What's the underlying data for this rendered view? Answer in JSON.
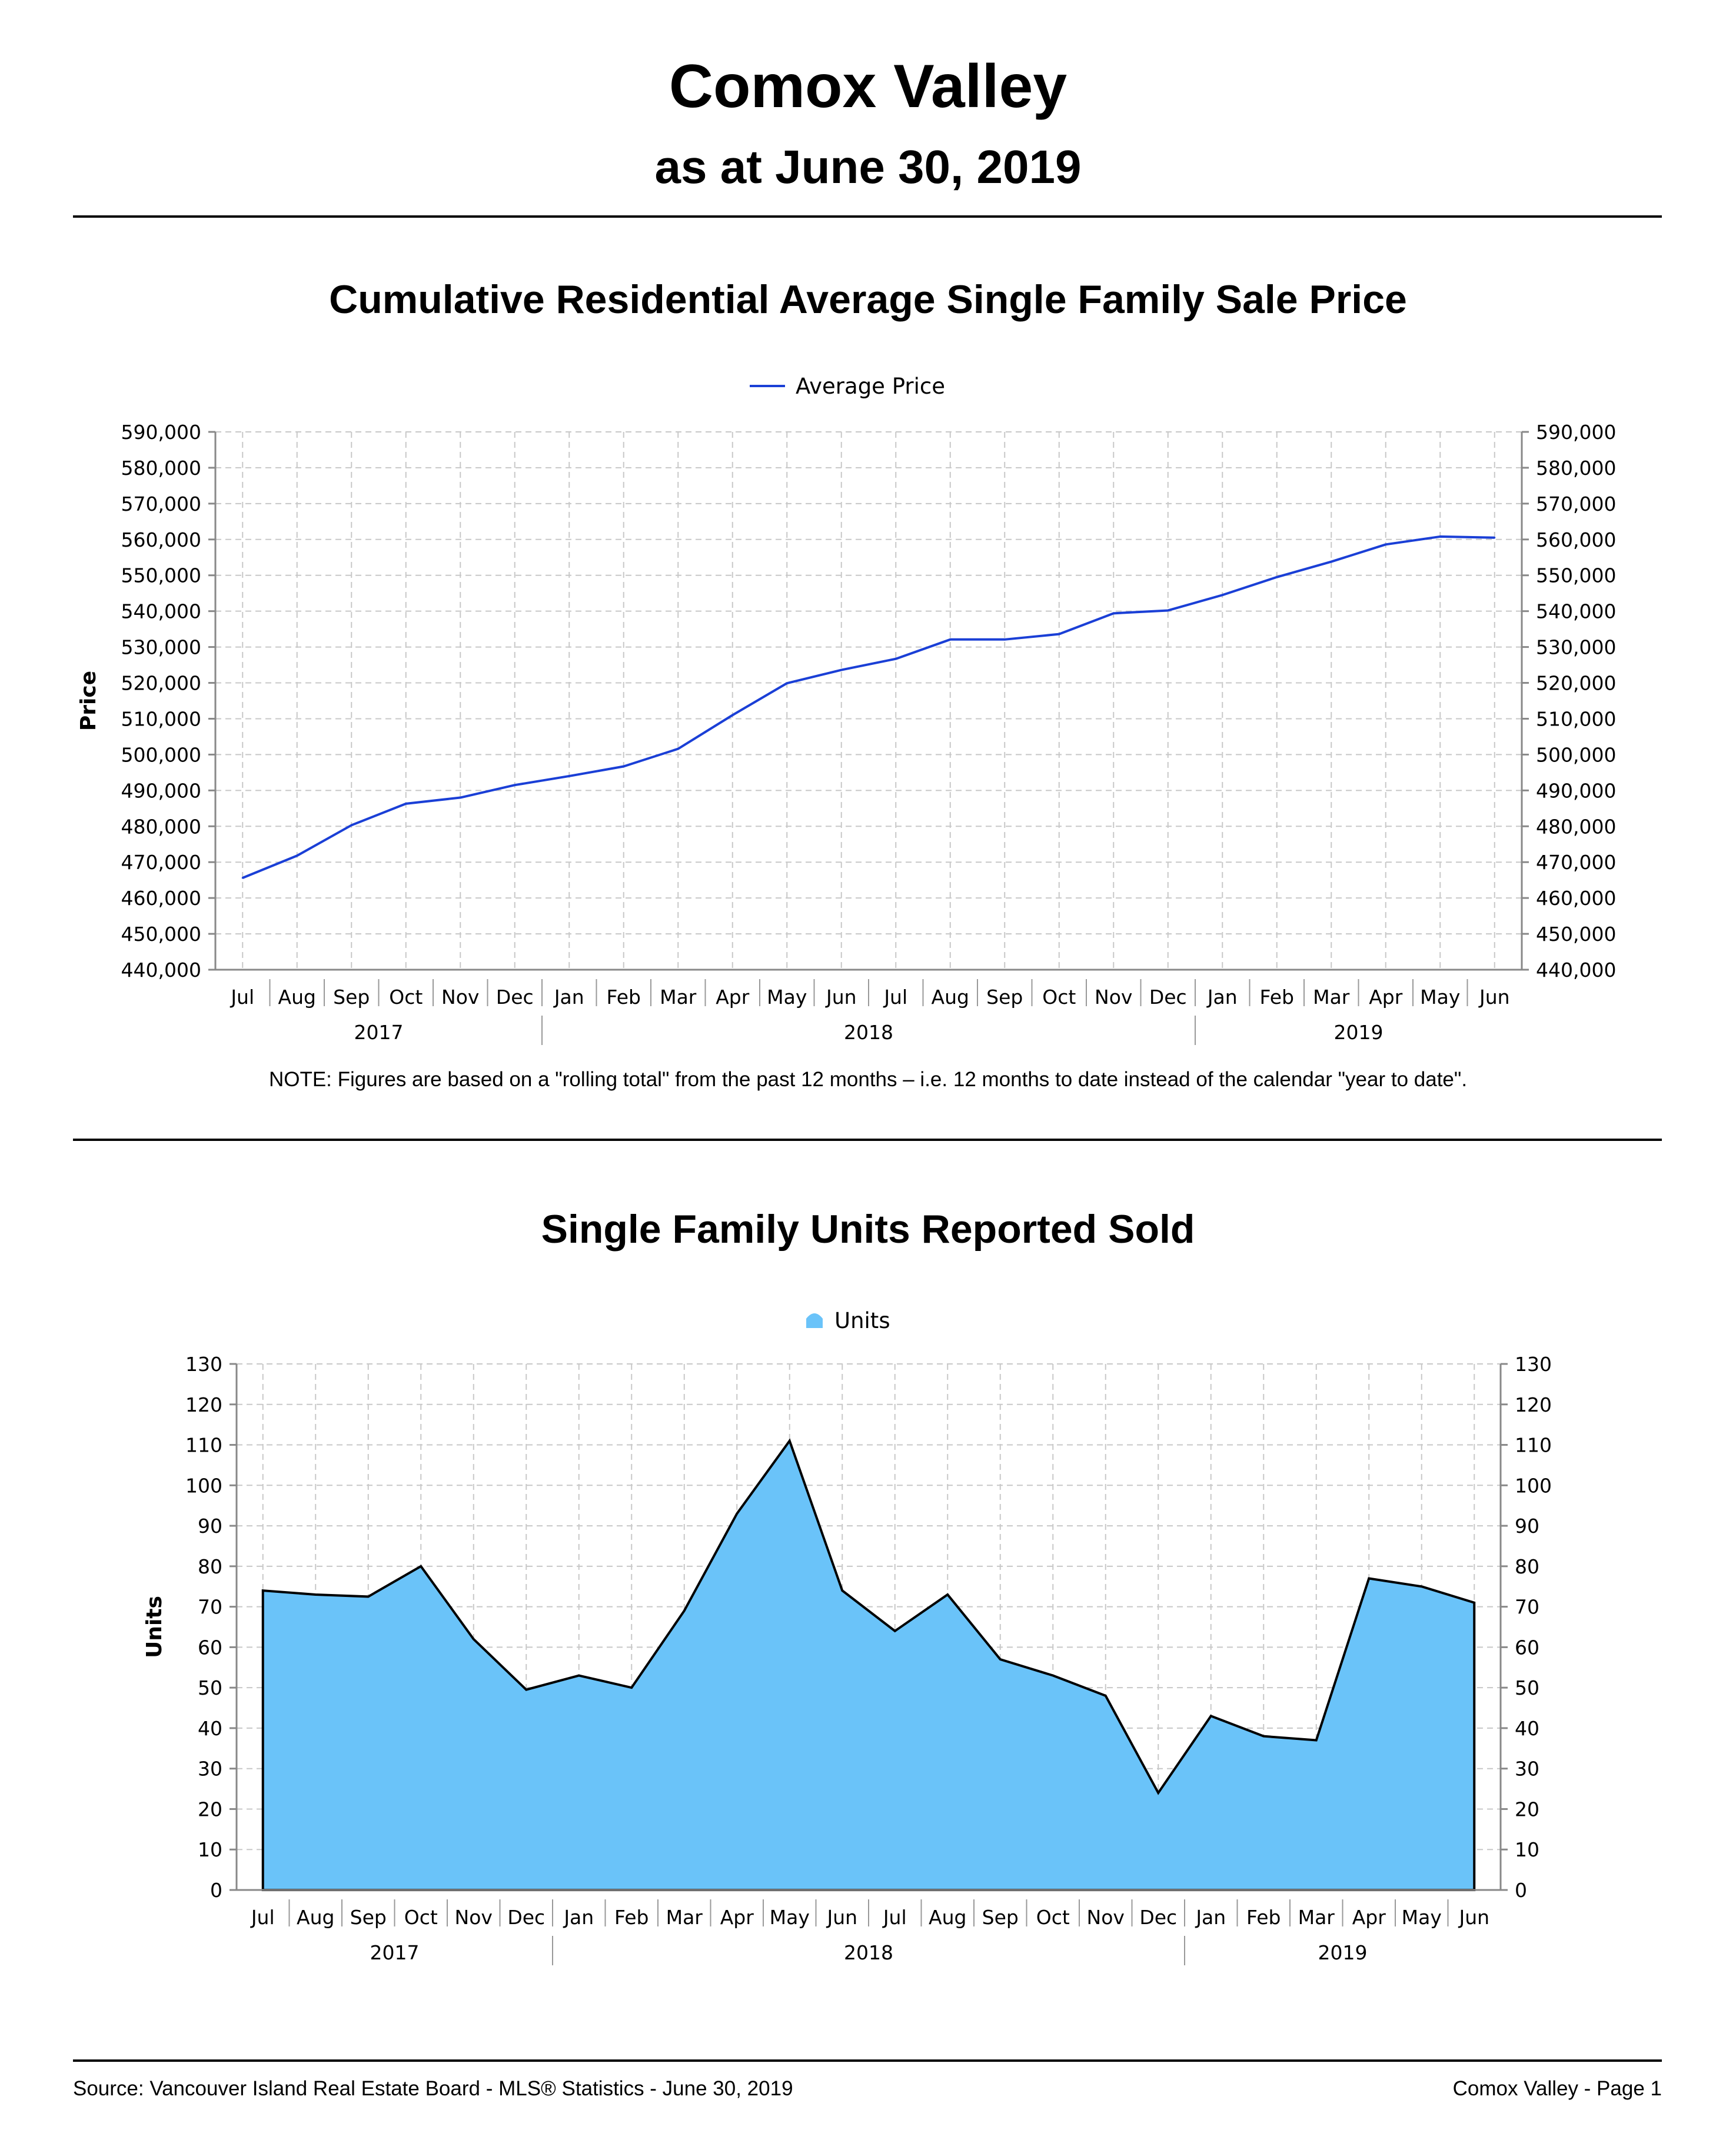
{
  "header": {
    "title": "Comox Valley",
    "subtitle": "as at June 30, 2019"
  },
  "note": "NOTE:  Figures are based on a \"rolling total\" from the past 12 months – i.e. 12 months to date instead of the calendar \"year to date\".",
  "footer": {
    "source": "Source: Vancouver Island Real Estate Board - MLS® Statistics - June 30, 2019",
    "page": "Comox Valley - Page 1"
  },
  "colors": {
    "line": "#1a3fd6",
    "area_fill": "#6ac3f9",
    "area_stroke": "#000000",
    "grid": "#c8c8c8",
    "axis": "#888888"
  },
  "chart_data": [
    {
      "type": "line",
      "title": "Cumulative Residential Average Single Family Sale Price",
      "ylabel": "Price",
      "xlabel": "",
      "ylim": [
        440000,
        590000
      ],
      "yticks": [
        440000,
        450000,
        460000,
        470000,
        480000,
        490000,
        500000,
        510000,
        520000,
        530000,
        540000,
        550000,
        560000,
        570000,
        580000,
        590000
      ],
      "ytick_labels": [
        "440,000",
        "450,000",
        "460,000",
        "470,000",
        "480,000",
        "490,000",
        "500,000",
        "510,000",
        "520,000",
        "530,000",
        "540,000",
        "550,000",
        "560,000",
        "570,000",
        "580,000",
        "590,000"
      ],
      "categories": [
        "Jul",
        "Aug",
        "Sep",
        "Oct",
        "Nov",
        "Dec",
        "Jan",
        "Feb",
        "Mar",
        "Apr",
        "May",
        "Jun",
        "Jul",
        "Aug",
        "Sep",
        "Oct",
        "Nov",
        "Dec",
        "Jan",
        "Feb",
        "Mar",
        "Apr",
        "May",
        "Jun"
      ],
      "year_groups": [
        {
          "label": "2017",
          "start": 0,
          "end": 5
        },
        {
          "label": "2018",
          "start": 6,
          "end": 17
        },
        {
          "label": "2019",
          "start": 18,
          "end": 23
        }
      ],
      "legend": "top-center",
      "grid": true,
      "series": [
        {
          "name": "Average Price",
          "values": [
            465600,
            471800,
            480300,
            486300,
            488000,
            491500,
            494000,
            496700,
            501600,
            511000,
            519900,
            523600,
            526700,
            532100,
            532100,
            533600,
            539400,
            540200,
            544500,
            549500,
            553800,
            558600,
            560800,
            560500
          ]
        }
      ]
    },
    {
      "type": "area",
      "title": "Single Family Units Reported Sold",
      "ylabel": "Units",
      "xlabel": "",
      "ylim": [
        0,
        130
      ],
      "yticks": [
        0,
        10,
        20,
        30,
        40,
        50,
        60,
        70,
        80,
        90,
        100,
        110,
        120,
        130
      ],
      "ytick_labels": [
        "0",
        "10",
        "20",
        "30",
        "40",
        "50",
        "60",
        "70",
        "80",
        "90",
        "100",
        "110",
        "120",
        "130"
      ],
      "categories": [
        "Jul",
        "Aug",
        "Sep",
        "Oct",
        "Nov",
        "Dec",
        "Jan",
        "Feb",
        "Mar",
        "Apr",
        "May",
        "Jun",
        "Jul",
        "Aug",
        "Sep",
        "Oct",
        "Nov",
        "Dec",
        "Jan",
        "Feb",
        "Mar",
        "Apr",
        "May",
        "Jun"
      ],
      "year_groups": [
        {
          "label": "2017",
          "start": 0,
          "end": 5
        },
        {
          "label": "2018",
          "start": 6,
          "end": 17
        },
        {
          "label": "2019",
          "start": 18,
          "end": 23
        }
      ],
      "legend": "top-center",
      "grid": true,
      "series": [
        {
          "name": "Units",
          "values": [
            74,
            73,
            72.5,
            80,
            62,
            49.5,
            53,
            50,
            69,
            93,
            111,
            74,
            64,
            73,
            57,
            53,
            48,
            24,
            43,
            38,
            37,
            77,
            75,
            71
          ]
        }
      ]
    }
  ]
}
